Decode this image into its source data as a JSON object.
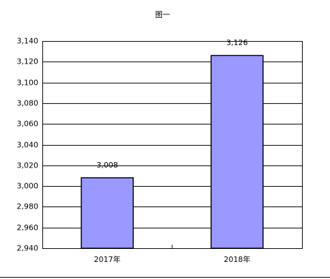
{
  "chart_data": {
    "type": "bar",
    "title": "图一",
    "categories": [
      "2017年",
      "2018年"
    ],
    "values": [
      3008,
      3126
    ],
    "value_labels": [
      "3,008",
      "3,126"
    ],
    "color": "#9999ff",
    "ylim": [
      2940,
      3140
    ],
    "yticks": [
      {
        "value": 2940,
        "label": "2,940"
      },
      {
        "value": 2960,
        "label": "2,960"
      },
      {
        "value": 2980,
        "label": "2,980"
      },
      {
        "value": 3000,
        "label": "3,000"
      },
      {
        "value": 3020,
        "label": "3,020"
      },
      {
        "value": 3040,
        "label": "3,040"
      },
      {
        "value": 3060,
        "label": "3,060"
      },
      {
        "value": 3080,
        "label": "3,080"
      },
      {
        "value": 3100,
        "label": "3,100"
      },
      {
        "value": 3120,
        "label": "3,120"
      },
      {
        "value": 3140,
        "label": "3,140"
      }
    ],
    "grid": true
  }
}
